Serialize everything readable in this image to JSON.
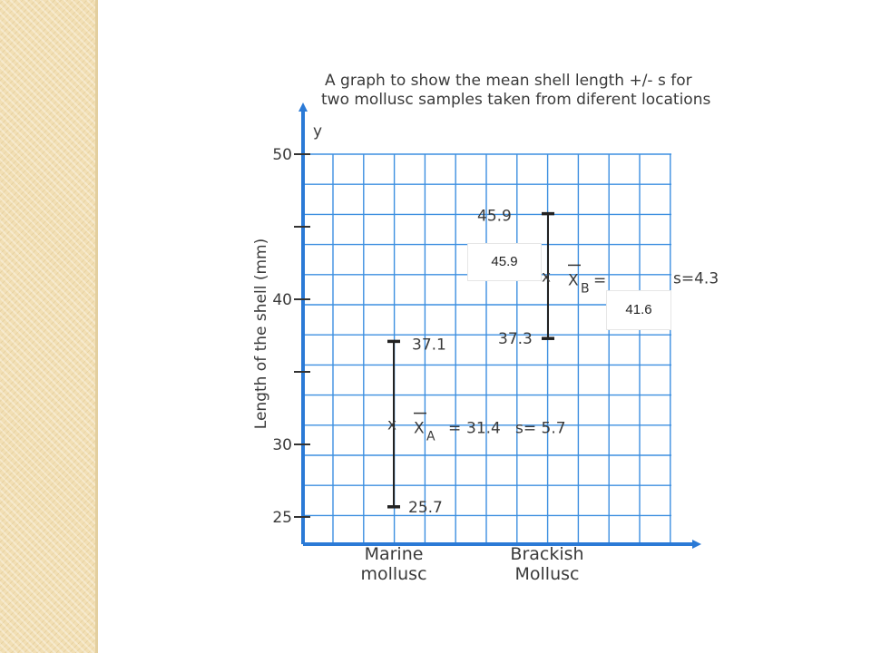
{
  "slide": {
    "side_strip_color": "#f2dfb4"
  },
  "chart_data": {
    "type": "error-bar",
    "title_lines": [
      "A graph to show the mean shell length +/- s for",
      "two mollusc samples taken from diferent locations"
    ],
    "ylabel": "Length of the shell (mm)",
    "y_axis_letter": "y",
    "ylim": [
      25,
      50
    ],
    "yticks": [
      25,
      30,
      40,
      50
    ],
    "grid": true,
    "grid_color": "#3d8fe0",
    "axis_color": "#2b7ad6",
    "categories": [
      {
        "label_lines": [
          "Marine",
          "mollusc"
        ]
      },
      {
        "label_lines": [
          "Brackish",
          "Mollusc"
        ]
      }
    ],
    "series": [
      {
        "category": "Marine mollusc",
        "mean": 31.4,
        "upper": 37.1,
        "lower": 25.7,
        "s": 5.7,
        "upper_label": "37.1",
        "lower_label": "25.7",
        "mean_text": {
          "marker": "x",
          "symbol": "X",
          "subscript": "A",
          "equals": "=",
          "value": "31.4",
          "s_text": "s= 5.7"
        }
      },
      {
        "category": "Brackish Mollusc",
        "mean": 41.6,
        "upper": 45.9,
        "lower": 37.3,
        "s": 4.3,
        "upper_label": "45.9",
        "lower_label": "37.3",
        "mean_text": {
          "marker": "x",
          "symbol": "X",
          "subscript": "B",
          "equals": "=",
          "value": "41.6",
          "s_text": "s=4.3"
        }
      }
    ]
  }
}
